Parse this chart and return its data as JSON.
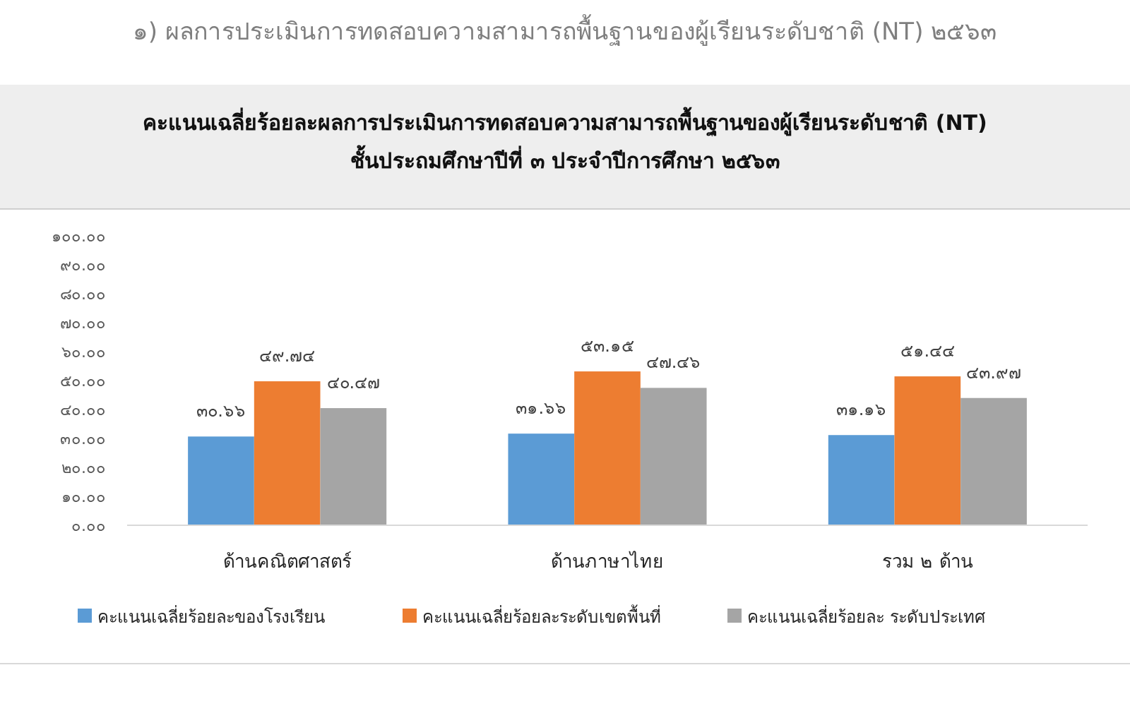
{
  "chart_data": {
    "type": "bar",
    "title": "คะแนนเฉลี่ยร้อยละผลการประเมินการทดสอบความสามารถพื้นฐานของผู้เรียนระดับชาติ (NT)\nชั้นประถมศึกษาปีที่ ๓ ประจำปีการศึกษา ๒๕๖๓",
    "annotations": [
      "๑)  ผลการประเมินการทดสอบความสามารถพื้นฐานของผู้เรียนระดับชาติ (NT) ๒๕๖๓"
    ],
    "categories": [
      "ด้านคณิตศาสตร์",
      "ด้านภาษาไทย",
      "รวม ๒ ด้าน"
    ],
    "series": [
      {
        "name": "คะแนนเฉลี่ยร้อยละของโรงเรียน",
        "color": "#5b9bd5",
        "values": [
          30.66,
          31.66,
          31.16
        ],
        "value_labels": [
          "๓๐.๖๖",
          "๓๑.๖๖",
          "๓๑.๑๖"
        ]
      },
      {
        "name": "คะแนนเฉลี่ยร้อยละระดับเขตพื้นที่",
        "color": "#ed7d31",
        "values": [
          49.74,
          53.15,
          51.44
        ],
        "value_labels": [
          "๔๙.๗๔",
          "๕๓.๑๕",
          "๕๑.๔๔"
        ]
      },
      {
        "name": "คะแนนเฉลี่ยร้อยละ  ระดับประเทศ",
        "color": "#a5a5a5",
        "values": [
          40.47,
          47.46,
          43.97
        ],
        "value_labels": [
          "๔๐.๔๗",
          "๔๗.๔๖",
          "๔๓.๙๗"
        ]
      }
    ],
    "ylim": [
      0,
      100
    ],
    "yticks": [
      {
        "value": 0,
        "label": "๐.๐๐"
      },
      {
        "value": 10,
        "label": "๑๐.๐๐"
      },
      {
        "value": 20,
        "label": "๒๐.๐๐"
      },
      {
        "value": 30,
        "label": "๓๐.๐๐"
      },
      {
        "value": 40,
        "label": "๔๐.๐๐"
      },
      {
        "value": 50,
        "label": "๕๐.๐๐"
      },
      {
        "value": 60,
        "label": "๖๐.๐๐"
      },
      {
        "value": 70,
        "label": "๗๐.๐๐"
      },
      {
        "value": 80,
        "label": "๘๐.๐๐"
      },
      {
        "value": 90,
        "label": "๙๐.๐๐"
      },
      {
        "value": 100,
        "label": "๑๐๐.๐๐"
      }
    ],
    "grid": false,
    "legend": "bottom"
  }
}
